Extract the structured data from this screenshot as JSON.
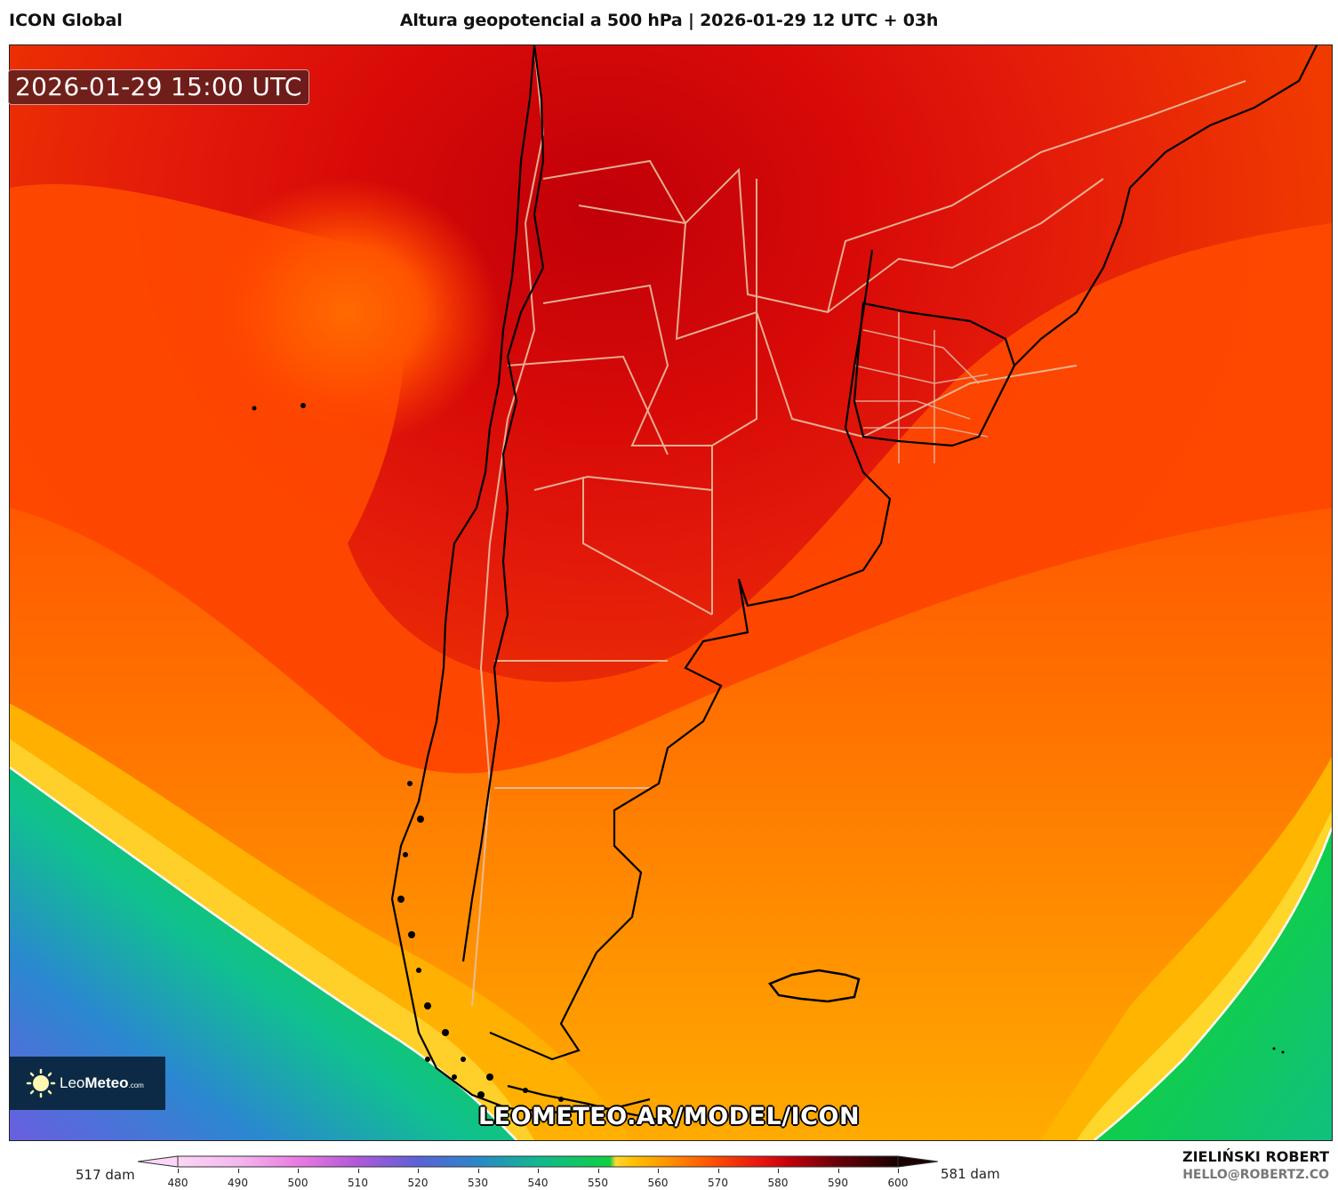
{
  "header": {
    "model": "ICON Global",
    "title": "Altura geopotencial a 500 hPa | 2026-01-29 12 UTC + 03h"
  },
  "map": {
    "valid_time": "2026-01-29 15:00 UTC",
    "watermark": "LEOMETEO.AR/MODEL/ICON",
    "logo": {
      "leo": "Leo",
      "meteo": "Meteo",
      "com": ".com"
    },
    "contour_highlight": "552 dam (white line)",
    "region": "South America – Argentina, Chile, Uruguay, southern Brazil, Falkland Islands",
    "colors": {
      "darkest_red": "#c80008",
      "red": "#e31a0a",
      "red_orange": "#f03a00",
      "orange_red": "#ff4d00",
      "orange": "#ff7a00",
      "amber": "#ffa000",
      "gold": "#ffc400",
      "yellow": "#ffd62a",
      "green": "#10d040",
      "teal": "#10c090",
      "blue": "#2a88d0",
      "violet": "#6a5ee0",
      "coastline": "#000000",
      "admin_border": "#e8c0a0"
    }
  },
  "colorbar": {
    "min_label": "517 dam",
    "max_label": "581 dam",
    "ticks": [
      "480",
      "490",
      "500",
      "510",
      "520",
      "530",
      "540",
      "550",
      "560",
      "570",
      "580",
      "590",
      "600"
    ],
    "stops": [
      {
        "v": 480,
        "c": "#fbd6f6"
      },
      {
        "v": 490,
        "c": "#f4b8ee"
      },
      {
        "v": 500,
        "c": "#ea7ae2"
      },
      {
        "v": 510,
        "c": "#b058d8"
      },
      {
        "v": 520,
        "c": "#5a62d8"
      },
      {
        "v": 530,
        "c": "#2a88c8"
      },
      {
        "v": 540,
        "c": "#10b890"
      },
      {
        "v": 552,
        "c": "#10d040"
      },
      {
        "v": 553,
        "c": "#ffd830"
      },
      {
        "v": 556,
        "c": "#ffc000"
      },
      {
        "v": 562,
        "c": "#ff9000"
      },
      {
        "v": 568,
        "c": "#ff5a00"
      },
      {
        "v": 574,
        "c": "#f02a08"
      },
      {
        "v": 578,
        "c": "#e41010"
      },
      {
        "v": 582,
        "c": "#c00008"
      },
      {
        "v": 590,
        "c": "#680008"
      },
      {
        "v": 600,
        "c": "#1a0000"
      }
    ]
  },
  "footer": {
    "author": "ZIELIŃSKI ROBERT",
    "email": "HELLO@ROBERTZ.CO"
  },
  "chart_data": {
    "type": "heatmap",
    "title": "Altura geopotencial a 500 hPa | 2026-01-29 12 UTC + 03h",
    "subtitle": "ICON Global",
    "valid_time": "2026-01-29 15:00 UTC",
    "variable": "500 hPa geopotential height",
    "units": "dam",
    "colorbar_range": [
      480,
      600
    ],
    "colorbar_ticks": [
      480,
      490,
      500,
      510,
      520,
      530,
      540,
      550,
      560,
      570,
      580,
      590,
      600
    ],
    "field_min": 517,
    "field_max": 581,
    "features": [
      {
        "name": "ridge maximum (darkest red)",
        "location": "northern Argentina / Chile border",
        "approx_value": 581
      },
      {
        "name": "weak low / cut-off",
        "location": "Pacific west of central Chile",
        "approx_value": 572
      },
      {
        "name": "trough / low heights",
        "location": "southwest Pacific corner",
        "approx_value": 517
      },
      {
        "name": "trough",
        "location": "southeast South Atlantic corner",
        "approx_value": 546
      },
      {
        "name": "highlighted contour",
        "value": 552
      }
    ]
  }
}
